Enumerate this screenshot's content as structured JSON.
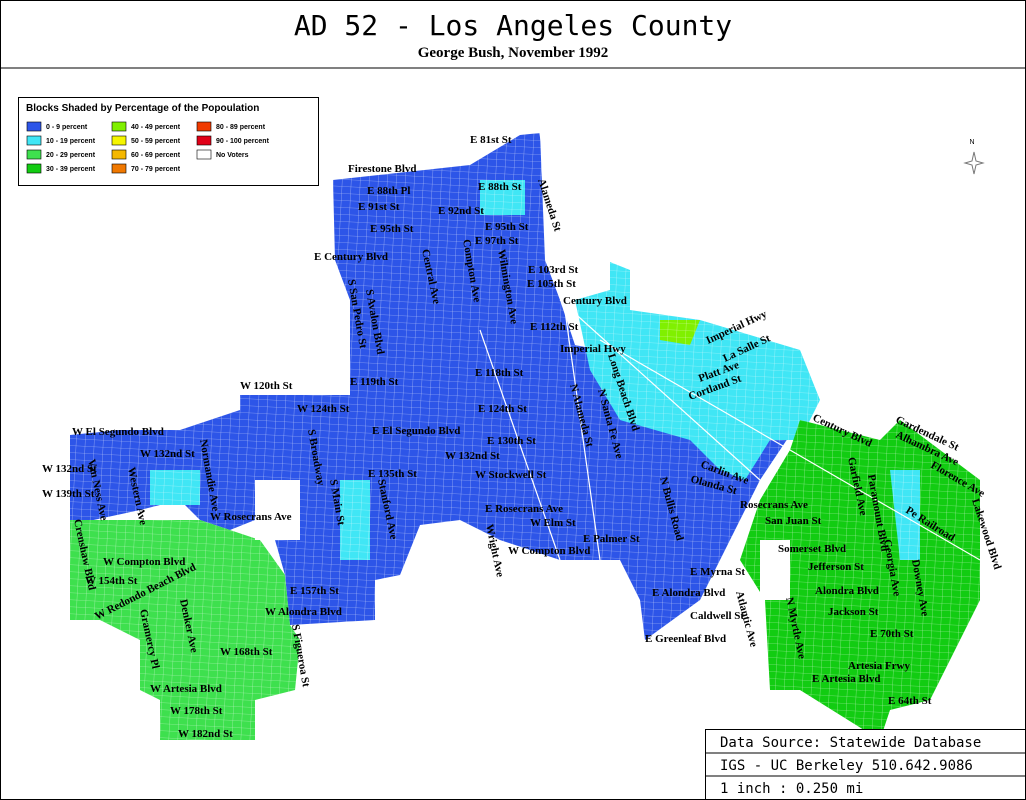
{
  "header": {
    "title": "AD 52 - Los Angeles County",
    "subtitle": "George Bush, November 1992"
  },
  "legend": {
    "title": "Blocks Shaded by Percentage of the Popoulation",
    "items": [
      {
        "label": "0 - 9 percent",
        "color": "#2d55e8"
      },
      {
        "label": "10 - 19 percent",
        "color": "#40e6f5"
      },
      {
        "label": "20 - 29 percent",
        "color": "#3ee04e"
      },
      {
        "label": "30 - 39 percent",
        "color": "#12cc12"
      },
      {
        "label": "40 - 49 percent",
        "color": "#80f000"
      },
      {
        "label": "50 - 59 percent",
        "color": "#f5f500"
      },
      {
        "label": "60 - 69 percent",
        "color": "#f5b800"
      },
      {
        "label": "70 - 79 percent",
        "color": "#f07800"
      },
      {
        "label": "80 - 89 percent",
        "color": "#f03a00"
      },
      {
        "label": "90 - 100 percent",
        "color": "#e00018"
      },
      {
        "label": "No Voters",
        "color": "#ffffff"
      }
    ]
  },
  "north_label": "N",
  "labels": [
    "E 81st St",
    "Firestone Blvd",
    "E 88th Pl",
    "E 88th St",
    "E 91st St",
    "E 92nd St",
    "E 95th St",
    "E 95th St",
    "E 97th St",
    "E Century Blvd",
    "E 103rd St",
    "E 105th St",
    "Century Blvd",
    "E 112th St",
    "Imperial Hwy",
    "Imperial Hwy",
    "La Salle St",
    "Platt Ave",
    "Cortland St",
    "E 119th St",
    "E 118th St",
    "W 120th St",
    "W 124th St",
    "E 124th St",
    "W El Segundo Blvd",
    "E El Segundo Blvd",
    "E 130th St",
    "W 132nd St",
    "W 132nd St",
    "W 132nd St",
    "E 135th St",
    "W Stockwell St",
    "W 139th St",
    "W Rosecrans Ave",
    "E Rosecrans Ave",
    "W Elm St",
    "E Palmer St",
    "W Compton Blvd",
    "W Compton Blvd",
    "W 154th St",
    "W Redondo Beach Blvd",
    "E 157th St",
    "W Alondra Blvd",
    "W 168th St",
    "W Artesia Blvd",
    "W 178th St",
    "W 182nd St",
    "Carlin Ave",
    "Olanda St",
    "Rosecrans Ave",
    "San Juan St",
    "Somerset Blvd",
    "Jefferson St",
    "Alondra Blvd",
    "Jackson St",
    "E 70th St",
    "Artesia Frwy",
    "E Artesia Blvd",
    "E Myrna St",
    "E Alondra Blvd",
    "Caldwell St",
    "E Greenleaf Blvd",
    "E 64th St",
    "Century Blvd",
    "Gardendale St",
    "Alhambra Ave",
    "Florence Ave",
    "Lakewood Blvd",
    "Pe Railroad",
    "Central Ave",
    "Compton Ave",
    "Alameda St",
    "N Alameda St",
    "Wilmington Ave",
    "S San Pedro St",
    "S Avalon Blvd",
    "S Broadway",
    "S Main St",
    "S Figueroa St",
    "Normandie Ave",
    "Western Ave",
    "Van Ness Ave",
    "Crenshaw Blvd",
    "Gramercy Pl",
    "Denker Ave",
    "Long Beach Blvd",
    "N Bullis Road",
    "Atlantic Ave",
    "N Myrtle Ave",
    "Garfield Ave",
    "Paramount Blvd",
    "Downey Ave",
    "Georgia Ave",
    "Wright Ave",
    "Stanford Ave",
    "N Santa Fe Ave"
  ],
  "footer": {
    "rows": [
      "Data Source: Statewide Database",
      "IGS - UC Berkeley 510.642.9086",
      "1 inch : 0.250 mi"
    ]
  }
}
